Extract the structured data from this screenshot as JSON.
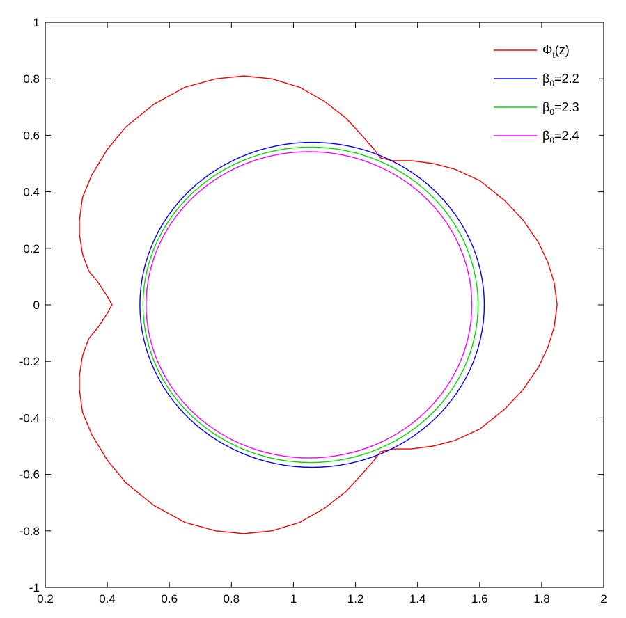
{
  "chart_data": {
    "type": "line",
    "title": "",
    "xlabel": "",
    "ylabel": "",
    "xlim": [
      0.2,
      2
    ],
    "ylim": [
      -1,
      1
    ],
    "xticks": [
      0.2,
      0.4,
      0.6,
      0.8,
      1,
      1.2,
      1.4,
      1.6,
      1.8,
      2
    ],
    "yticks": [
      -1,
      -0.8,
      -0.6,
      -0.4,
      -0.2,
      0,
      0.2,
      0.4,
      0.6,
      0.8,
      1
    ],
    "xtick_labels": [
      "0.2",
      "0.4",
      "0.6",
      "0.8",
      "1",
      "1.2",
      "1.4",
      "1.6",
      "1.8",
      "2"
    ],
    "ytick_labels": [
      "-1",
      "-0.8",
      "-0.6",
      "-0.4",
      "-0.2",
      "0",
      "0.2",
      "0.4",
      "0.6",
      "0.8",
      "1"
    ],
    "grid": false,
    "legend_position": "top-right",
    "series": [
      {
        "name": "Φt(z)",
        "legend_main": "Φ",
        "legend_sub": "t",
        "legend_tail": "(z)",
        "color": "#ff0000",
        "points": [
          [
            0.415,
            0.0
          ],
          [
            0.4,
            0.03
          ],
          [
            0.37,
            0.08
          ],
          [
            0.34,
            0.12
          ],
          [
            0.32,
            0.18
          ],
          [
            0.31,
            0.25
          ],
          [
            0.31,
            0.3
          ],
          [
            0.32,
            0.38
          ],
          [
            0.35,
            0.46
          ],
          [
            0.4,
            0.55
          ],
          [
            0.46,
            0.63
          ],
          [
            0.55,
            0.71
          ],
          [
            0.65,
            0.77
          ],
          [
            0.75,
            0.8
          ],
          [
            0.84,
            0.81
          ],
          [
            0.93,
            0.8
          ],
          [
            1.02,
            0.77
          ],
          [
            1.1,
            0.72
          ],
          [
            1.17,
            0.66
          ],
          [
            1.22,
            0.6
          ],
          [
            1.26,
            0.55
          ],
          [
            1.28,
            0.52
          ],
          [
            1.32,
            0.51
          ],
          [
            1.38,
            0.51
          ],
          [
            1.45,
            0.5
          ],
          [
            1.52,
            0.48
          ],
          [
            1.6,
            0.44
          ],
          [
            1.68,
            0.37
          ],
          [
            1.74,
            0.3
          ],
          [
            1.79,
            0.22
          ],
          [
            1.82,
            0.15
          ],
          [
            1.84,
            0.08
          ],
          [
            1.85,
            0.0
          ],
          [
            1.84,
            -0.08
          ],
          [
            1.82,
            -0.15
          ],
          [
            1.79,
            -0.22
          ],
          [
            1.74,
            -0.3
          ],
          [
            1.68,
            -0.37
          ],
          [
            1.6,
            -0.44
          ],
          [
            1.52,
            -0.48
          ],
          [
            1.45,
            -0.5
          ],
          [
            1.38,
            -0.51
          ],
          [
            1.32,
            -0.51
          ],
          [
            1.28,
            -0.52
          ],
          [
            1.26,
            -0.55
          ],
          [
            1.22,
            -0.6
          ],
          [
            1.17,
            -0.66
          ],
          [
            1.1,
            -0.72
          ],
          [
            1.02,
            -0.77
          ],
          [
            0.93,
            -0.8
          ],
          [
            0.84,
            -0.81
          ],
          [
            0.75,
            -0.8
          ],
          [
            0.65,
            -0.77
          ],
          [
            0.55,
            -0.71
          ],
          [
            0.46,
            -0.63
          ],
          [
            0.4,
            -0.55
          ],
          [
            0.35,
            -0.46
          ],
          [
            0.32,
            -0.38
          ],
          [
            0.31,
            -0.3
          ],
          [
            0.31,
            -0.25
          ],
          [
            0.32,
            -0.18
          ],
          [
            0.34,
            -0.12
          ],
          [
            0.37,
            -0.08
          ],
          [
            0.4,
            -0.03
          ],
          [
            0.415,
            0.0
          ]
        ]
      },
      {
        "name": "β0=2.2",
        "legend_main": "β",
        "legend_sub": "0",
        "legend_tail": "=2.2",
        "color": "#0000ff",
        "ellipse": {
          "cx": 1.06,
          "cy": 0.0,
          "rx": 0.555,
          "ry": 0.575
        }
      },
      {
        "name": "β0=2.3",
        "legend_main": "β",
        "legend_sub": "0",
        "legend_tail": "=2.3",
        "color": "#00dd00",
        "ellipse": {
          "cx": 1.055,
          "cy": 0.0,
          "rx": 0.54,
          "ry": 0.558
        }
      },
      {
        "name": "β0=2.4",
        "legend_main": "β",
        "legend_sub": "0",
        "legend_tail": "=2.4",
        "color": "#ff00ff",
        "ellipse": {
          "cx": 1.05,
          "cy": 0.0,
          "rx": 0.525,
          "ry": 0.542
        }
      }
    ]
  }
}
